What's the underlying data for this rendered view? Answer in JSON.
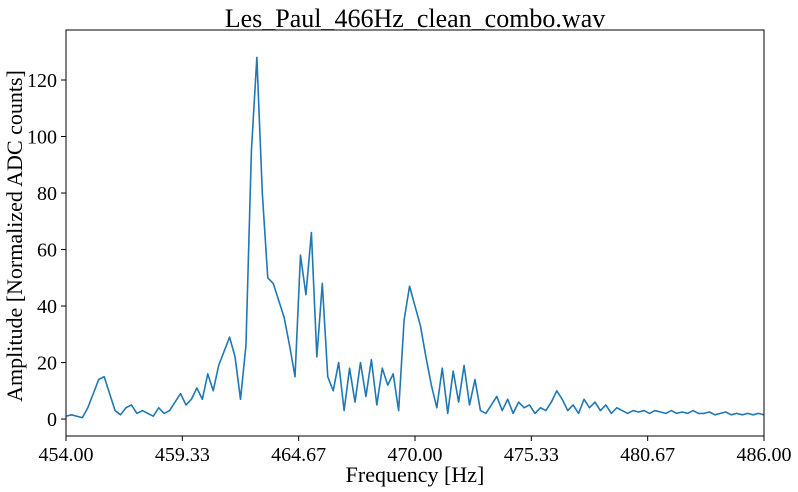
{
  "chart_data": {
    "type": "line",
    "title": "Les_Paul_466Hz_clean_combo.wav",
    "x_label": "Frequency [Hz]",
    "y_label": "Amplitude [Normalized ADC counts]",
    "xlim": [
      454,
      486
    ],
    "ylim": [
      -6,
      137.7
    ],
    "xticks": [
      {
        "value": 454,
        "label": "454.00"
      },
      {
        "value": 459.333,
        "label": "459.33"
      },
      {
        "value": 464.667,
        "label": "464.67"
      },
      {
        "value": 470,
        "label": "470.00"
      },
      {
        "value": 475.333,
        "label": "475.33"
      },
      {
        "value": 480.667,
        "label": "480.67"
      },
      {
        "value": 486,
        "label": "486.00"
      }
    ],
    "yticks": [
      0,
      20,
      40,
      60,
      80,
      100,
      120
    ],
    "grid": false,
    "series": [
      {
        "color": "#1f77b4",
        "x": [
          454,
          454.25,
          454.5,
          454.75,
          455,
          455.25,
          455.5,
          455.75,
          456,
          456.25,
          456.5,
          456.75,
          457,
          457.25,
          457.5,
          457.75,
          458,
          458.25,
          458.5,
          458.75,
          459,
          459.25,
          459.5,
          459.75,
          460,
          460.25,
          460.5,
          460.75,
          461,
          461.25,
          461.5,
          461.75,
          462,
          462.25,
          462.5,
          462.75,
          463,
          463.25,
          463.5,
          463.75,
          464,
          464.25,
          464.5,
          464.75,
          465,
          465.25,
          465.5,
          465.75,
          466,
          466.25,
          466.5,
          466.75,
          467,
          467.25,
          467.5,
          467.75,
          468,
          468.25,
          468.5,
          468.75,
          469,
          469.25,
          469.5,
          469.75,
          470,
          470.25,
          470.5,
          470.75,
          471,
          471.25,
          471.5,
          471.75,
          472,
          472.25,
          472.5,
          472.75,
          473,
          473.25,
          473.5,
          473.75,
          474,
          474.25,
          474.5,
          474.75,
          475,
          475.25,
          475.5,
          475.75,
          476,
          476.25,
          476.5,
          476.75,
          477,
          477.25,
          477.5,
          477.75,
          478,
          478.25,
          478.5,
          478.75,
          479,
          479.25,
          479.5,
          479.75,
          480,
          480.25,
          480.5,
          480.75,
          481,
          481.25,
          481.5,
          481.75,
          482,
          482.25,
          482.5,
          482.75,
          483,
          483.25,
          483.5,
          483.75,
          484,
          484.25,
          484.5,
          484.75,
          485,
          485.25,
          485.5,
          485.75,
          486
        ],
        "values": [
          1,
          1.5,
          1,
          0.5,
          4,
          9,
          14,
          15,
          9,
          3,
          1.5,
          4,
          5,
          2,
          3,
          2,
          1,
          4,
          2,
          3,
          6,
          9,
          5,
          7,
          11,
          7,
          16,
          10,
          19,
          24,
          29,
          22,
          7,
          26,
          95,
          128,
          80,
          50,
          48,
          42,
          36,
          26,
          15,
          58,
          44,
          66,
          22,
          48,
          15,
          10,
          20,
          3,
          18,
          6,
          20,
          8,
          21,
          5,
          18,
          12,
          16,
          3,
          35,
          47,
          40,
          33,
          22,
          12,
          4,
          18,
          2,
          17,
          6,
          19,
          5,
          14,
          3,
          2,
          5,
          8,
          3,
          7,
          2,
          6,
          4,
          5,
          2,
          4,
          3,
          6,
          10,
          7,
          3,
          5,
          2,
          7,
          4,
          6,
          3,
          5,
          2,
          4,
          3,
          2,
          3,
          2.5,
          3,
          2,
          3,
          2.5,
          2,
          3,
          2,
          2.5,
          2,
          3,
          2,
          2,
          2.5,
          1.5,
          2,
          2.5,
          1.5,
          2,
          1.5,
          2,
          1.5,
          2,
          1.5
        ]
      }
    ]
  }
}
